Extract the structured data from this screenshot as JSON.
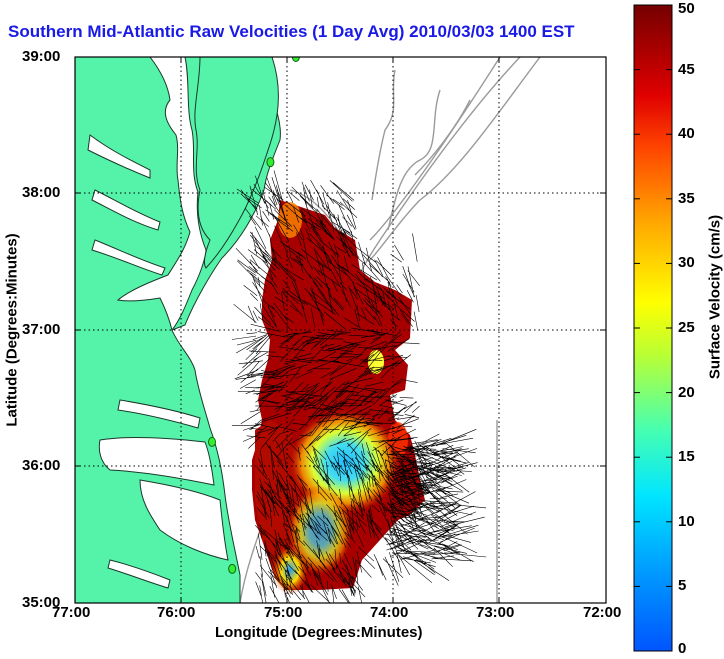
{
  "title": "Southern Mid-Atlantic Raw Velocities (1 Day Avg) 2010/03/03 1400 EST",
  "axes": {
    "xlabel": "Longitude (Degrees:Minutes)",
    "ylabel": "Latitude (Degrees:Minutes)",
    "xticks": [
      "77:00",
      "76:00",
      "75:00",
      "74:00",
      "73:00",
      "72:00"
    ],
    "yticks": [
      "39:00",
      "38:00",
      "37:00",
      "36:00",
      "35:00"
    ],
    "xlim": [
      -77,
      -72
    ],
    "ylim": [
      35,
      39
    ]
  },
  "colorbar": {
    "label": "Surface Velocity (cm/s)",
    "ticks": [
      "50",
      "45",
      "40",
      "35",
      "30",
      "25",
      "20",
      "15",
      "10",
      "5",
      "0"
    ],
    "range": [
      0,
      50
    ]
  },
  "colors": {
    "title": "#1a1ae6",
    "land": "#55f2aa",
    "bathymetry": "#999999",
    "grid": "#000000"
  },
  "stations": [
    {
      "lon": -74.92,
      "lat": 39.0
    },
    {
      "lon": -75.16,
      "lat": 38.23
    },
    {
      "lon": -75.71,
      "lat": 36.18
    },
    {
      "lon": -75.52,
      "lat": 35.25
    }
  ]
}
